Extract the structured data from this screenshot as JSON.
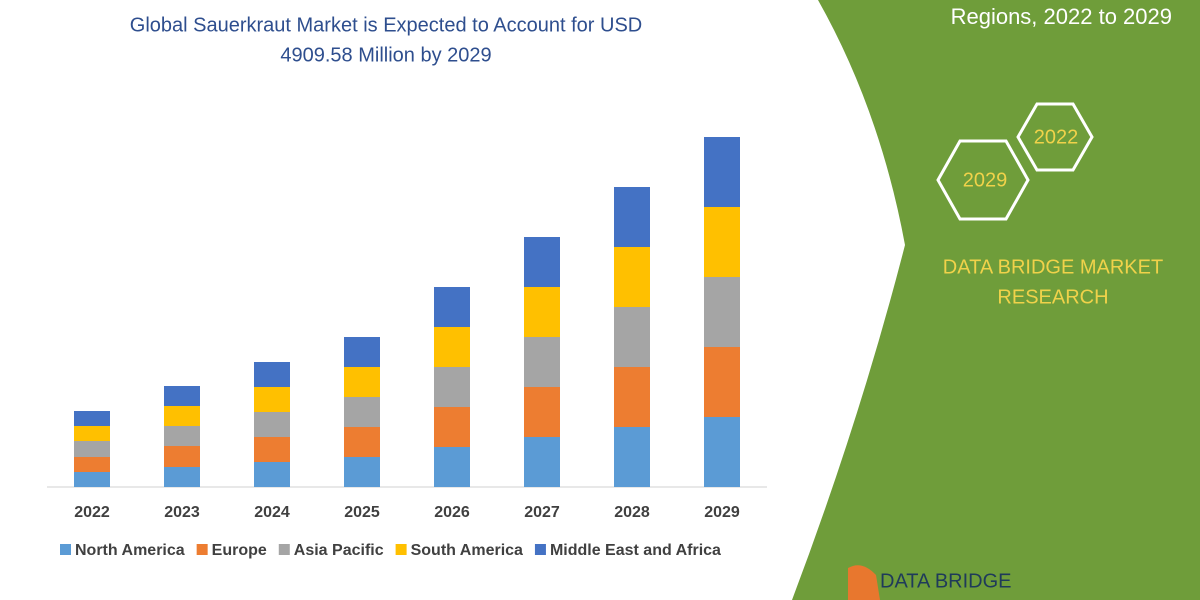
{
  "chart_data": {
    "type": "stacked_bar",
    "title": [
      "Global Sauerkraut Market is Expected to Account for USD",
      "4909.58 Million by 2029"
    ],
    "categories": [
      "2022",
      "2023",
      "2024",
      "2025",
      "2026",
      "2027",
      "2028",
      "2029"
    ],
    "series": [
      {
        "name": "North America",
        "color": "#5b9bd5",
        "values": [
          15,
          20,
          25,
          30,
          40,
          50,
          60,
          70
        ]
      },
      {
        "name": "Europe",
        "color": "#ed7d31",
        "values": [
          15,
          21,
          25,
          30,
          40,
          50,
          60,
          70
        ]
      },
      {
        "name": "Asia Pacific",
        "color": "#a5a5a5",
        "values": [
          16,
          20,
          25,
          30,
          40,
          50,
          60,
          70
        ]
      },
      {
        "name": "South America",
        "color": "#ffc000",
        "values": [
          15,
          20,
          25,
          30,
          40,
          50,
          60,
          70
        ]
      },
      {
        "name": "Middle East and Africa",
        "color": "#4472c4",
        "values": [
          15,
          20,
          25,
          30,
          40,
          50,
          60,
          70
        ]
      }
    ],
    "ylim": [
      0,
      352
    ]
  },
  "side_panel": {
    "subtitle": "Regions, 2022 to 2029",
    "hexagons": [
      "2029",
      "2022"
    ],
    "brand": [
      "DATA BRIDGE MARKET",
      "RESEARCH"
    ],
    "logo": "DATA BRIDGE"
  }
}
